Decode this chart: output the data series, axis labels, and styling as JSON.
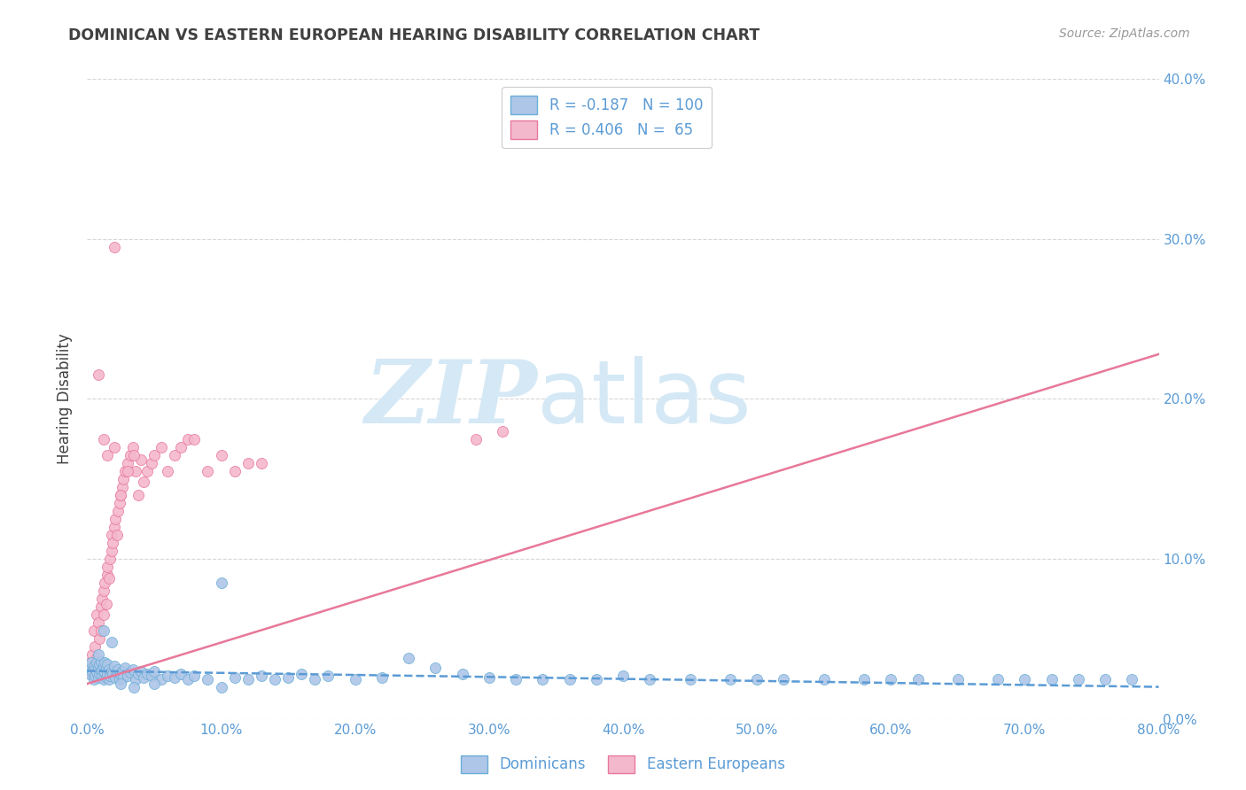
{
  "title": "DOMINICAN VS EASTERN EUROPEAN HEARING DISABILITY CORRELATION CHART",
  "source": "Source: ZipAtlas.com",
  "ylabel": "Hearing Disability",
  "xlim": [
    0.0,
    0.8
  ],
  "ylim": [
    0.0,
    0.4
  ],
  "legend_entries": [
    {
      "label": "Dominicans",
      "color": "#aec6e8",
      "border": "#6aaed6",
      "R": "-0.187",
      "N": "100"
    },
    {
      "label": "Eastern Europeans",
      "color": "#f4b8cc",
      "border": "#e8789a",
      "R": "0.406",
      "N": "65"
    }
  ],
  "dominican_scatter_x": [
    0.001,
    0.002,
    0.003,
    0.004,
    0.005,
    0.005,
    0.006,
    0.006,
    0.007,
    0.007,
    0.008,
    0.008,
    0.009,
    0.009,
    0.01,
    0.01,
    0.011,
    0.011,
    0.012,
    0.012,
    0.013,
    0.013,
    0.014,
    0.014,
    0.015,
    0.015,
    0.016,
    0.016,
    0.017,
    0.018,
    0.019,
    0.02,
    0.021,
    0.022,
    0.023,
    0.024,
    0.025,
    0.026,
    0.027,
    0.028,
    0.03,
    0.032,
    0.034,
    0.036,
    0.038,
    0.04,
    0.042,
    0.045,
    0.048,
    0.05,
    0.055,
    0.06,
    0.065,
    0.07,
    0.075,
    0.08,
    0.09,
    0.1,
    0.11,
    0.12,
    0.13,
    0.14,
    0.15,
    0.16,
    0.17,
    0.18,
    0.2,
    0.22,
    0.24,
    0.26,
    0.28,
    0.3,
    0.32,
    0.34,
    0.36,
    0.38,
    0.4,
    0.42,
    0.45,
    0.48,
    0.5,
    0.52,
    0.55,
    0.58,
    0.6,
    0.62,
    0.65,
    0.68,
    0.7,
    0.72,
    0.74,
    0.76,
    0.78,
    0.008,
    0.012,
    0.018,
    0.025,
    0.035,
    0.05,
    0.1
  ],
  "dominican_scatter_y": [
    0.032,
    0.028,
    0.035,
    0.03,
    0.033,
    0.025,
    0.031,
    0.027,
    0.029,
    0.035,
    0.026,
    0.032,
    0.028,
    0.034,
    0.03,
    0.036,
    0.027,
    0.031,
    0.025,
    0.033,
    0.029,
    0.035,
    0.026,
    0.032,
    0.028,
    0.034,
    0.025,
    0.031,
    0.027,
    0.03,
    0.028,
    0.033,
    0.026,
    0.029,
    0.031,
    0.025,
    0.028,
    0.03,
    0.026,
    0.032,
    0.027,
    0.029,
    0.031,
    0.025,
    0.028,
    0.03,
    0.026,
    0.028,
    0.027,
    0.03,
    0.025,
    0.027,
    0.026,
    0.028,
    0.025,
    0.027,
    0.025,
    0.085,
    0.026,
    0.025,
    0.027,
    0.025,
    0.026,
    0.028,
    0.025,
    0.027,
    0.025,
    0.026,
    0.038,
    0.032,
    0.028,
    0.026,
    0.025,
    0.025,
    0.025,
    0.025,
    0.027,
    0.025,
    0.025,
    0.025,
    0.025,
    0.025,
    0.025,
    0.025,
    0.025,
    0.025,
    0.025,
    0.025,
    0.025,
    0.025,
    0.025,
    0.025,
    0.025,
    0.04,
    0.055,
    0.048,
    0.022,
    0.02,
    0.022,
    0.02
  ],
  "eastern_scatter_x": [
    0.001,
    0.002,
    0.003,
    0.004,
    0.005,
    0.005,
    0.006,
    0.007,
    0.007,
    0.008,
    0.009,
    0.01,
    0.01,
    0.011,
    0.012,
    0.012,
    0.013,
    0.014,
    0.015,
    0.015,
    0.016,
    0.017,
    0.018,
    0.018,
    0.019,
    0.02,
    0.021,
    0.022,
    0.023,
    0.024,
    0.025,
    0.026,
    0.027,
    0.028,
    0.03,
    0.032,
    0.034,
    0.036,
    0.038,
    0.04,
    0.042,
    0.045,
    0.048,
    0.05,
    0.055,
    0.06,
    0.065,
    0.07,
    0.075,
    0.08,
    0.09,
    0.1,
    0.11,
    0.12,
    0.13,
    0.29,
    0.31,
    0.02,
    0.008,
    0.012,
    0.015,
    0.02,
    0.025,
    0.03,
    0.035
  ],
  "eastern_scatter_y": [
    0.03,
    0.035,
    0.028,
    0.04,
    0.032,
    0.055,
    0.045,
    0.038,
    0.065,
    0.06,
    0.05,
    0.07,
    0.055,
    0.075,
    0.065,
    0.08,
    0.085,
    0.072,
    0.09,
    0.095,
    0.088,
    0.1,
    0.105,
    0.115,
    0.11,
    0.12,
    0.125,
    0.115,
    0.13,
    0.135,
    0.14,
    0.145,
    0.15,
    0.155,
    0.16,
    0.165,
    0.17,
    0.155,
    0.14,
    0.162,
    0.148,
    0.155,
    0.16,
    0.165,
    0.17,
    0.155,
    0.165,
    0.17,
    0.175,
    0.175,
    0.155,
    0.165,
    0.155,
    0.16,
    0.16,
    0.175,
    0.18,
    0.295,
    0.215,
    0.175,
    0.165,
    0.17,
    0.14,
    0.155,
    0.165
  ],
  "dominican_line_color": "#5b9bd5",
  "dominican_line_style": "--",
  "eastern_line_color": "#e8789a",
  "eastern_line_style": "-",
  "dominican_line_x": [
    0.0,
    0.8
  ],
  "dominican_line_y": [
    0.03,
    0.02
  ],
  "eastern_line_x": [
    0.0,
    0.8
  ],
  "eastern_line_y": [
    0.022,
    0.228
  ],
  "dominican_scatter_color": "#aec6e8",
  "dominican_scatter_border": "#6aaed6",
  "eastern_scatter_color": "#f4b8cc",
  "eastern_scatter_border": "#e8789a",
  "background_color": "#ffffff",
  "grid_color": "#bbbbbb",
  "axis_label_color": "#5b9bd5",
  "title_color": "#404040",
  "watermark_zip": "ZIP",
  "watermark_atlas": "atlas",
  "watermark_color": "#d5e8f5"
}
